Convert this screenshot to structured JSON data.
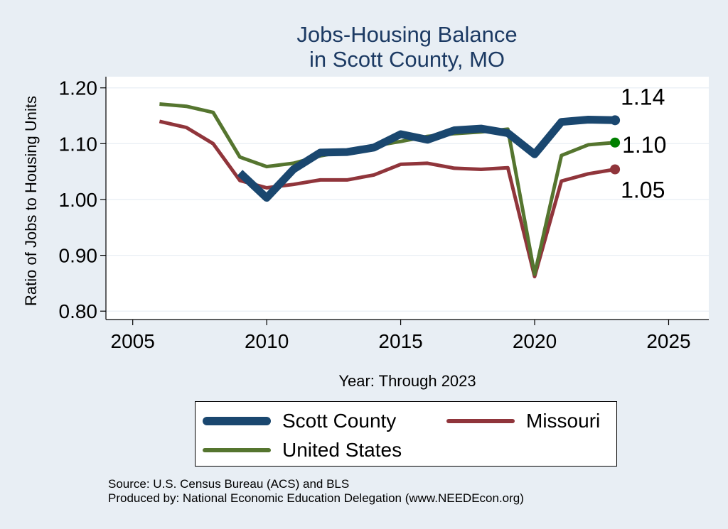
{
  "chart_data": {
    "type": "line",
    "title": [
      "Jobs-Housing Balance",
      "in Scott County, MO"
    ],
    "xlabel": "Year: Through 2023",
    "ylabel": "Ratio of Jobs to Housing Units",
    "xlim": [
      2004,
      2026.5
    ],
    "ylim": [
      0.785,
      1.22
    ],
    "xticks": [
      2005,
      2010,
      2015,
      2020,
      2025
    ],
    "yticks": [
      0.8,
      0.9,
      1.0,
      1.1,
      1.2
    ],
    "ytick_labels": [
      "0.80",
      "0.90",
      "1.00",
      "1.10",
      "1.20"
    ],
    "grid": true,
    "legend_position": "bottom",
    "series": [
      {
        "name": "Scott County",
        "color": "#1a476f",
        "width": "thick",
        "end_label": "1.14",
        "points": [
          [
            2009,
            1.048
          ],
          [
            2010,
            1.003
          ],
          [
            2011,
            1.054
          ],
          [
            2012,
            1.084
          ],
          [
            2013,
            1.085
          ],
          [
            2014,
            1.093
          ],
          [
            2015,
            1.117
          ],
          [
            2016,
            1.107
          ],
          [
            2017,
            1.124
          ],
          [
            2018,
            1.127
          ],
          [
            2019,
            1.119
          ],
          [
            2020,
            1.081
          ],
          [
            2021,
            1.139
          ],
          [
            2022,
            1.143
          ],
          [
            2023,
            1.142
          ]
        ]
      },
      {
        "name": "Missouri",
        "color": "#90353b",
        "width": "medium",
        "end_label": "1.05",
        "points": [
          [
            2006,
            1.14
          ],
          [
            2007,
            1.129
          ],
          [
            2008,
            1.1
          ],
          [
            2009,
            1.034
          ],
          [
            2010,
            1.021
          ],
          [
            2011,
            1.027
          ],
          [
            2012,
            1.035
          ],
          [
            2013,
            1.035
          ],
          [
            2014,
            1.044
          ],
          [
            2015,
            1.063
          ],
          [
            2016,
            1.065
          ],
          [
            2017,
            1.056
          ],
          [
            2018,
            1.054
          ],
          [
            2019,
            1.057
          ],
          [
            2020,
            0.862
          ],
          [
            2021,
            1.033
          ],
          [
            2022,
            1.046
          ],
          [
            2023,
            1.054
          ]
        ]
      },
      {
        "name": "United States",
        "color": "#55752f",
        "width": "medium",
        "end_label": "1.10",
        "points": [
          [
            2006,
            1.171
          ],
          [
            2007,
            1.167
          ],
          [
            2008,
            1.156
          ],
          [
            2009,
            1.076
          ],
          [
            2010,
            1.059
          ],
          [
            2011,
            1.065
          ],
          [
            2012,
            1.078
          ],
          [
            2013,
            1.087
          ],
          [
            2014,
            1.096
          ],
          [
            2015,
            1.104
          ],
          [
            2016,
            1.113
          ],
          [
            2017,
            1.118
          ],
          [
            2018,
            1.121
          ],
          [
            2019,
            1.126
          ],
          [
            2020,
            0.866
          ],
          [
            2021,
            1.079
          ],
          [
            2022,
            1.098
          ],
          [
            2023,
            1.102
          ]
        ]
      }
    ],
    "end_marker_colors": [
      "#1a476f",
      "#008000",
      "#90353b"
    ]
  },
  "legend": {
    "items": [
      {
        "label": "Scott County",
        "color": "#1a476f"
      },
      {
        "label": "Missouri",
        "color": "#90353b"
      },
      {
        "label": "United States",
        "color": "#55752f"
      }
    ]
  },
  "source": {
    "line1": "Source: U.S. Census Bureau (ACS) and BLS",
    "line2": "Produced by: National Economic Education Delegation (www.NEEDEcon.org)"
  }
}
